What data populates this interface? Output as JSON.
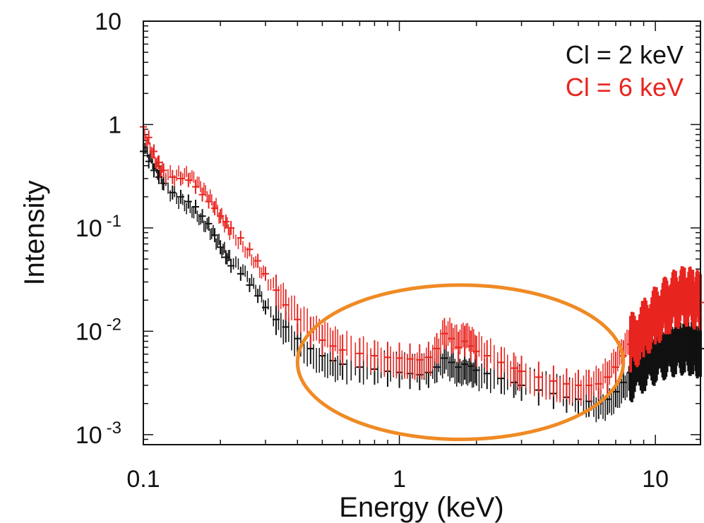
{
  "chart_data": {
    "type": "scatter",
    "xlabel": "Energy (keV)",
    "ylabel": "Intensity",
    "xscale": "log",
    "yscale": "log",
    "xlim": [
      0.1,
      15
    ],
    "ylim": [
      0.0008,
      10
    ],
    "x_ticks": [
      {
        "value": 0.1,
        "label": "0.1"
      },
      {
        "value": 1,
        "label": "1"
      },
      {
        "value": 10,
        "label": "10"
      }
    ],
    "y_ticks": [
      {
        "value": 10,
        "base": "10",
        "exp": ""
      },
      {
        "value": 1,
        "base": "1",
        "exp": ""
      },
      {
        "value": 0.1,
        "base": "10",
        "exp": "-1"
      },
      {
        "value": 0.01,
        "base": "10",
        "exp": "-2"
      },
      {
        "value": 0.001,
        "base": "10",
        "exp": "-3"
      }
    ],
    "legend_position": "top-right",
    "series": [
      {
        "name": "Cl = 2 keV",
        "color": "#111111",
        "points": [
          [
            0.1,
            0.55
          ],
          [
            0.105,
            0.44
          ],
          [
            0.11,
            0.36
          ],
          [
            0.115,
            0.31
          ],
          [
            0.12,
            0.27
          ],
          [
            0.13,
            0.22
          ],
          [
            0.14,
            0.2
          ],
          [
            0.15,
            0.18
          ],
          [
            0.16,
            0.16
          ],
          [
            0.17,
            0.13
          ],
          [
            0.18,
            0.11
          ],
          [
            0.19,
            0.085
          ],
          [
            0.2,
            0.065
          ],
          [
            0.21,
            0.052
          ],
          [
            0.22,
            0.043
          ],
          [
            0.24,
            0.036
          ],
          [
            0.26,
            0.028
          ],
          [
            0.28,
            0.022
          ],
          [
            0.3,
            0.017
          ],
          [
            0.33,
            0.013
          ],
          [
            0.36,
            0.011
          ],
          [
            0.4,
            0.0085
          ],
          [
            0.45,
            0.0068
          ],
          [
            0.5,
            0.0058
          ],
          [
            0.55,
            0.0052
          ],
          [
            0.6,
            0.0048
          ],
          [
            0.7,
            0.0045
          ],
          [
            0.8,
            0.0043
          ],
          [
            0.9,
            0.0041
          ],
          [
            1.0,
            0.004
          ],
          [
            1.1,
            0.0039
          ],
          [
            1.2,
            0.0038
          ],
          [
            1.3,
            0.004
          ],
          [
            1.4,
            0.0045
          ],
          [
            1.5,
            0.0055
          ],
          [
            1.6,
            0.005
          ],
          [
            1.7,
            0.0045
          ],
          [
            1.8,
            0.0048
          ],
          [
            1.9,
            0.0046
          ],
          [
            2.0,
            0.0042
          ],
          [
            2.2,
            0.0039
          ],
          [
            2.5,
            0.0035
          ],
          [
            2.8,
            0.0032
          ],
          [
            3.0,
            0.003
          ],
          [
            3.5,
            0.0027
          ],
          [
            4.0,
            0.0025
          ],
          [
            4.5,
            0.0023
          ],
          [
            5.0,
            0.0022
          ],
          [
            5.5,
            0.0021
          ],
          [
            6.0,
            0.002
          ],
          [
            6.5,
            0.0022
          ],
          [
            7.0,
            0.0026
          ],
          [
            7.5,
            0.0032
          ],
          [
            8.0,
            0.004
          ],
          [
            9.0,
            0.005
          ],
          [
            10.0,
            0.006
          ],
          [
            11.0,
            0.0068
          ],
          [
            12.0,
            0.0072
          ],
          [
            13.0,
            0.0075
          ],
          [
            14.0,
            0.0072
          ],
          [
            15.0,
            0.0068
          ]
        ]
      },
      {
        "name": "Cl = 6 keV",
        "color": "#e8251f",
        "points": [
          [
            0.1,
            0.95
          ],
          [
            0.105,
            0.75
          ],
          [
            0.11,
            0.55
          ],
          [
            0.115,
            0.43
          ],
          [
            0.12,
            0.36
          ],
          [
            0.13,
            0.31
          ],
          [
            0.14,
            0.3
          ],
          [
            0.15,
            0.29
          ],
          [
            0.16,
            0.25
          ],
          [
            0.17,
            0.21
          ],
          [
            0.18,
            0.18
          ],
          [
            0.19,
            0.155
          ],
          [
            0.2,
            0.13
          ],
          [
            0.21,
            0.115
          ],
          [
            0.22,
            0.1
          ],
          [
            0.24,
            0.08
          ],
          [
            0.26,
            0.062
          ],
          [
            0.28,
            0.048
          ],
          [
            0.3,
            0.036
          ],
          [
            0.33,
            0.025
          ],
          [
            0.36,
            0.018
          ],
          [
            0.4,
            0.013
          ],
          [
            0.45,
            0.0098
          ],
          [
            0.5,
            0.0082
          ],
          [
            0.55,
            0.0072
          ],
          [
            0.6,
            0.0066
          ],
          [
            0.7,
            0.0061
          ],
          [
            0.8,
            0.0058
          ],
          [
            0.9,
            0.0056
          ],
          [
            1.0,
            0.0055
          ],
          [
            1.1,
            0.0054
          ],
          [
            1.2,
            0.0053
          ],
          [
            1.3,
            0.0056
          ],
          [
            1.4,
            0.0068
          ],
          [
            1.5,
            0.0095
          ],
          [
            1.6,
            0.0085
          ],
          [
            1.7,
            0.007
          ],
          [
            1.8,
            0.008
          ],
          [
            1.9,
            0.0072
          ],
          [
            2.0,
            0.0064
          ],
          [
            2.2,
            0.0058
          ],
          [
            2.5,
            0.005
          ],
          [
            2.8,
            0.0044
          ],
          [
            3.0,
            0.0041
          ],
          [
            3.5,
            0.0036
          ],
          [
            4.0,
            0.0033
          ],
          [
            4.5,
            0.0031
          ],
          [
            5.0,
            0.003
          ],
          [
            5.5,
            0.003
          ],
          [
            6.0,
            0.0031
          ],
          [
            6.5,
            0.0036
          ],
          [
            7.0,
            0.0045
          ],
          [
            7.5,
            0.0058
          ],
          [
            8.0,
            0.0075
          ],
          [
            9.0,
            0.0105
          ],
          [
            10.0,
            0.014
          ],
          [
            11.0,
            0.0175
          ],
          [
            12.0,
            0.0205
          ],
          [
            13.0,
            0.022
          ],
          [
            14.0,
            0.021
          ],
          [
            15.0,
            0.019
          ]
        ]
      }
    ],
    "annotation": {
      "shape": "ellipse",
      "color": "#f08a24",
      "x_range": [
        0.4,
        7.5
      ],
      "y_range": [
        0.0009,
        0.028
      ]
    }
  }
}
